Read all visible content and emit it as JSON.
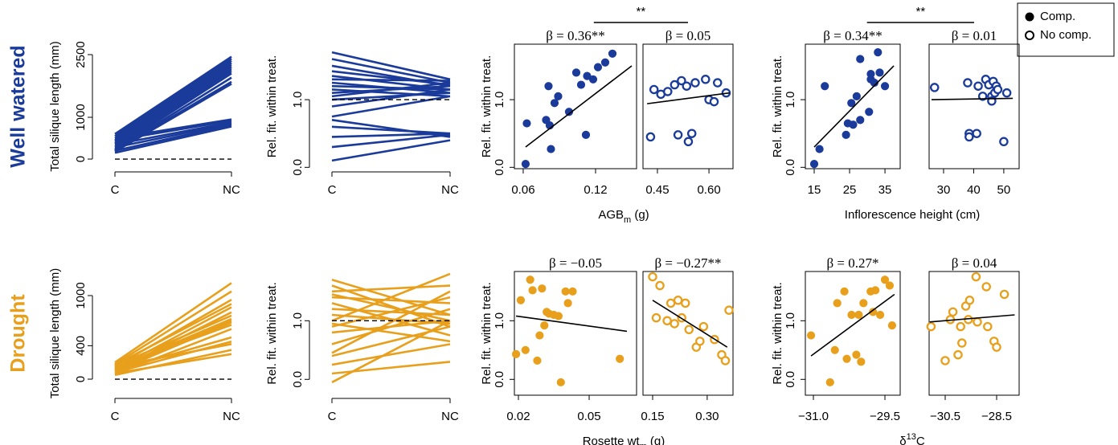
{
  "row_labels": [
    {
      "text": "Well watered",
      "color": "#1b3b9b"
    },
    {
      "text": "Drought",
      "color": "#e8a01c"
    }
  ],
  "legend": {
    "corner": "upper right",
    "entries": [
      {
        "label": "Comp.",
        "marker": "filled"
      },
      {
        "label": "No comp.",
        "marker": "open"
      }
    ]
  },
  "chart_data": [
    {
      "type": "slope",
      "ylabel": "Total silique length (mm)",
      "categories": [
        "C",
        "NC"
      ],
      "ylim": [
        -230,
        2750
      ],
      "yticks": [
        0,
        1000,
        2500
      ],
      "reference_line": 0,
      "color": "#1b3b9b",
      "series": [
        {
          "values": [
            600,
            2450
          ]
        },
        {
          "values": [
            550,
            2400
          ]
        },
        {
          "values": [
            500,
            2350
          ]
        },
        {
          "values": [
            450,
            2300
          ]
        },
        {
          "values": [
            420,
            2250
          ]
        },
        {
          "values": [
            380,
            2200
          ]
        },
        {
          "values": [
            350,
            2150
          ]
        },
        {
          "values": [
            300,
            2100
          ]
        },
        {
          "values": [
            250,
            2050
          ]
        },
        {
          "values": [
            220,
            1950
          ]
        },
        {
          "values": [
            200,
            1850
          ]
        },
        {
          "values": [
            180,
            1800
          ]
        },
        {
          "values": [
            500,
            950
          ]
        },
        {
          "values": [
            450,
            920
          ]
        },
        {
          "values": [
            350,
            880
          ]
        },
        {
          "values": [
            280,
            850
          ]
        },
        {
          "values": [
            200,
            820
          ]
        },
        {
          "values": [
            150,
            780
          ]
        }
      ]
    },
    {
      "type": "slope",
      "ylabel": "Rel. fit. within treat.",
      "categories": [
        "C",
        "NC"
      ],
      "ylim": [
        -0.02,
        1.82
      ],
      "yticks": [
        {
          "value": 0,
          "label": "0.0"
        },
        {
          "value": 1,
          "label": "1.0"
        }
      ],
      "reference_line": 1,
      "color": "#1b3b9b",
      "series": [
        {
          "values": [
            1.7,
            1.3
          ]
        },
        {
          "values": [
            1.6,
            1.25
          ]
        },
        {
          "values": [
            1.5,
            1.2
          ]
        },
        {
          "values": [
            1.42,
            1.22
          ]
        },
        {
          "values": [
            1.35,
            1.15
          ]
        },
        {
          "values": [
            1.3,
            1.28
          ]
        },
        {
          "values": [
            1.25,
            1.1
          ]
        },
        {
          "values": [
            1.2,
            1.15
          ]
        },
        {
          "values": [
            1.15,
            1.05
          ]
        },
        {
          "values": [
            1.1,
            1.2
          ]
        },
        {
          "values": [
            1.05,
            1.25
          ]
        },
        {
          "values": [
            1.0,
            1.1
          ]
        },
        {
          "values": [
            0.9,
            1.15
          ]
        },
        {
          "values": [
            0.75,
            1.05
          ]
        },
        {
          "values": [
            0.7,
            0.45
          ]
        },
        {
          "values": [
            0.6,
            0.5
          ]
        },
        {
          "values": [
            0.45,
            0.5
          ]
        },
        {
          "values": [
            0.3,
            0.48
          ]
        },
        {
          "values": [
            0.1,
            0.4
          ]
        }
      ]
    },
    {
      "type": "scatter",
      "ylabel": "Rel. fit. within treat.",
      "xlabel": {
        "text": "AGB",
        "sub": "m",
        "after": " (g)"
      },
      "bracket_label": "**",
      "ylim": [
        -0.02,
        1.82
      ],
      "yticks": [
        {
          "value": 0,
          "label": "0.0"
        },
        {
          "value": 1,
          "label": "1.0"
        }
      ],
      "color": "#1b3b9b",
      "subplots": [
        {
          "marker": "filled",
          "annotation": "β = 0.36**",
          "xlim": [
            0.0527,
            0.154
          ],
          "xticks": [
            0.06,
            0.12
          ],
          "x": [
            0.062,
            0.063,
            0.079,
            0.081,
            0.082,
            0.083,
            0.086,
            0.089,
            0.098,
            0.104,
            0.108,
            0.112,
            0.113,
            0.118,
            0.122,
            0.128,
            0.134
          ],
          "y": [
            0.05,
            0.65,
            0.7,
            1.2,
            0.62,
            0.27,
            0.95,
            1.05,
            0.82,
            1.4,
            1.22,
            0.48,
            1.35,
            1.3,
            1.48,
            1.55,
            1.68
          ],
          "fit": {
            "x": [
              0.062,
              0.15
            ],
            "y": [
              0.3,
              1.5
            ]
          }
        },
        {
          "marker": "open",
          "annotation": "β = 0.05",
          "xlim": [
            0.408,
            0.67
          ],
          "xticks": [
            0.45,
            {
              "value": 0.6,
              "label": "0.60"
            }
          ],
          "x": [
            0.43,
            0.44,
            0.46,
            0.48,
            0.5,
            0.51,
            0.52,
            0.535,
            0.54,
            0.55,
            0.56,
            0.59,
            0.6,
            0.615,
            0.625,
            0.65
          ],
          "y": [
            0.45,
            1.15,
            1.08,
            1.12,
            1.22,
            0.48,
            1.28,
            1.2,
            0.38,
            0.5,
            1.25,
            1.3,
            1.0,
            0.97,
            1.25,
            1.1
          ],
          "fit": {
            "x": [
              0.42,
              0.66
            ],
            "y": [
              0.94,
              1.1
            ]
          }
        }
      ]
    },
    {
      "type": "scatter",
      "ylabel": "Rel. fit. within treat.",
      "xlabel": {
        "text": "Inflorescence height (cm)"
      },
      "bracket_label": "**",
      "ylim": [
        -0.02,
        1.82
      ],
      "yticks": [
        {
          "value": 0,
          "label": "0.0"
        },
        {
          "value": 1,
          "label": "1.0"
        }
      ],
      "color": "#1b3b9b",
      "subplots": [
        {
          "marker": "filled",
          "annotation": "β = 0.34**",
          "xlim": [
            12.5,
            39.3
          ],
          "xticks": [
            15,
            25,
            35
          ],
          "x": [
            15,
            16.5,
            18,
            24,
            24.5,
            25.5,
            26,
            27,
            28,
            28,
            30.5,
            31,
            31,
            32,
            33,
            33.5,
            35
          ],
          "y": [
            0.05,
            0.27,
            1.2,
            0.48,
            0.65,
            0.95,
            0.63,
            1.05,
            0.7,
            1.6,
            0.82,
            1.3,
            1.38,
            1.25,
            1.7,
            1.4,
            1.2
          ],
          "fit": {
            "x": [
              15,
              37.5
            ],
            "y": [
              0.3,
              1.5
            ]
          }
        },
        {
          "marker": "open",
          "annotation": "β = 0.01",
          "xlim": [
            25.2,
            55.1
          ],
          "xticks": [
            30,
            40,
            50
          ],
          "x": [
            27,
            38,
            38.5,
            38.5,
            41,
            41.5,
            43,
            44,
            45,
            46,
            46,
            46.5,
            47,
            47.5,
            48,
            50,
            51
          ],
          "y": [
            1.18,
            1.25,
            0.5,
            0.45,
            0.5,
            1.2,
            1.05,
            1.3,
            1.22,
            1.05,
            0.98,
            1.27,
            1.1,
            1.2,
            1.15,
            0.38,
            1.1
          ],
          "fit": {
            "x": [
              26,
              53
            ],
            "y": [
              1.0,
              1.02
            ]
          }
        }
      ]
    },
    {
      "type": "slope",
      "ylabel": "Total silique length (mm)",
      "categories": [
        "C",
        "NC"
      ],
      "ylim": [
        -192,
        1288
      ],
      "yticks": [
        0,
        400,
        1000
      ],
      "reference_line": 0,
      "color": "#e8a01c",
      "series": [
        {
          "values": [
            200,
            1150
          ]
        },
        {
          "values": [
            180,
            1050
          ]
        },
        {
          "values": [
            150,
            950
          ]
        },
        {
          "values": [
            170,
            900
          ]
        },
        {
          "values": [
            120,
            860
          ]
        },
        {
          "values": [
            100,
            800
          ]
        },
        {
          "values": [
            160,
            760
          ]
        },
        {
          "values": [
            130,
            720
          ]
        },
        {
          "values": [
            110,
            700
          ]
        },
        {
          "values": [
            90,
            680
          ]
        },
        {
          "values": [
            140,
            650
          ]
        },
        {
          "values": [
            60,
            600
          ]
        },
        {
          "values": [
            100,
            500
          ]
        },
        {
          "values": [
            80,
            450
          ]
        },
        {
          "values": [
            150,
            420
          ]
        },
        {
          "values": [
            50,
            350
          ]
        },
        {
          "values": [
            70,
            300
          ]
        }
      ]
    },
    {
      "type": "slope",
      "ylabel": "Rel. fit. within treat.",
      "categories": [
        "C",
        "NC"
      ],
      "ylim": [
        -0.27,
        1.84
      ],
      "yticks": [
        {
          "value": 0,
          "label": "0.0"
        },
        {
          "value": 1,
          "label": "1.0"
        }
      ],
      "reference_line": 1,
      "color": "#e8a01c",
      "series": [
        {
          "values": [
            1.7,
            1.1
          ]
        },
        {
          "values": [
            1.6,
            0.9
          ]
        },
        {
          "values": [
            1.5,
            1.6
          ]
        },
        {
          "values": [
            1.45,
            1.0
          ]
        },
        {
          "values": [
            1.4,
            1.3
          ]
        },
        {
          "values": [
            1.3,
            0.75
          ]
        },
        {
          "values": [
            1.2,
            1.1
          ]
        },
        {
          "values": [
            1.1,
            0.95
          ]
        },
        {
          "values": [
            1.0,
            1.8
          ]
        },
        {
          "values": [
            0.95,
            0.65
          ]
        },
        {
          "values": [
            0.9,
            1.4
          ]
        },
        {
          "values": [
            0.8,
            1.0
          ]
        },
        {
          "values": [
            0.6,
            1.2
          ]
        },
        {
          "values": [
            0.45,
            1.5
          ]
        },
        {
          "values": [
            0.4,
            0.9
          ]
        },
        {
          "values": [
            0.25,
            0.6
          ]
        },
        {
          "values": [
            0.1,
            0.3
          ]
        },
        {
          "values": [
            -0.05,
            1.0
          ]
        }
      ]
    },
    {
      "type": "scatter",
      "ylabel": "Rel. fit. within treat.",
      "xlabel": {
        "text": "Rosette wt",
        "sub": "m",
        "after": " (g)"
      },
      "ylim": [
        -0.27,
        1.84
      ],
      "yticks": [
        {
          "value": 0,
          "label": "0.0"
        },
        {
          "value": 1,
          "label": "1.0"
        }
      ],
      "color": "#e8a01c",
      "subplots": [
        {
          "marker": "filled",
          "annotation": "β = −0.05",
          "xlim": [
            0.0183,
            0.0701
          ],
          "xticks": [
            0.02,
            0.05
          ],
          "x": [
            0.019,
            0.021,
            0.023,
            0.025,
            0.026,
            0.028,
            0.029,
            0.03,
            0.031,
            0.032,
            0.033,
            0.035,
            0.037,
            0.038,
            0.04,
            0.041,
            0.043,
            0.063
          ],
          "y": [
            0.43,
            1.35,
            0.5,
            1.7,
            1.52,
            0.32,
            0.75,
            1.55,
            0.92,
            1.15,
            1.12,
            1.1,
            1.08,
            -0.05,
            1.5,
            1.3,
            1.5,
            0.35
          ],
          "fit": {
            "x": [
              0.019,
              0.066
            ],
            "y": [
              1.08,
              0.82
            ]
          }
        },
        {
          "marker": "open",
          "annotation": "β = −0.27**",
          "xlim": [
            0.1235,
            0.371
          ],
          "xticks": [
            0.15,
            {
              "value": 0.3,
              "label": "0.30"
            }
          ],
          "x": [
            0.15,
            0.16,
            0.17,
            0.19,
            0.2,
            0.21,
            0.22,
            0.23,
            0.24,
            0.25,
            0.27,
            0.28,
            0.29,
            0.32,
            0.34,
            0.35,
            0.36
          ],
          "y": [
            1.75,
            1.05,
            1.6,
            1.0,
            1.3,
            0.95,
            1.35,
            1.05,
            1.3,
            0.85,
            0.55,
            0.65,
            0.9,
            0.68,
            0.42,
            0.32,
            1.18
          ],
          "fit": {
            "x": [
              0.15,
              0.355
            ],
            "y": [
              1.35,
              0.55
            ]
          }
        }
      ]
    },
    {
      "type": "scatter",
      "ylabel": "Rel. fit. within treat.",
      "xlabel": {
        "text": "δ",
        "sup": "13",
        "after": "C"
      },
      "ylim": [
        -0.27,
        1.84
      ],
      "yticks": [
        {
          "value": 0,
          "label": "0.0"
        },
        {
          "value": 1,
          "label": "1.0"
        }
      ],
      "color": "#e8a01c",
      "subplots": [
        {
          "marker": "filled",
          "annotation": "β = 0.27*",
          "xlim": [
            -31.169,
            -29.18
          ],
          "xticks": [
            {
              "value": -31,
              "label": "−31.0"
            },
            {
              "value": -29.5,
              "label": "−29.5"
            }
          ],
          "x": [
            -31.05,
            -30.65,
            -30.55,
            -30.5,
            -30.35,
            -30.3,
            -30.2,
            -30.1,
            -30.05,
            -30.0,
            -29.95,
            -29.8,
            -29.75,
            -29.7,
            -29.6,
            -29.5,
            -29.4,
            -29.35
          ],
          "y": [
            0.75,
            -0.05,
            0.5,
            1.3,
            1.5,
            0.35,
            1.1,
            0.42,
            1.1,
            0.3,
            1.3,
            1.5,
            1.15,
            1.52,
            1.1,
            1.7,
            1.6,
            0.92
          ],
          "fit": {
            "x": [
              -31.05,
              -29.3
            ],
            "y": [
              0.4,
              1.45
            ]
          }
        },
        {
          "marker": "open",
          "annotation": "β = 0.04",
          "xlim": [
            -31.125,
            -27.625
          ],
          "xticks": [
            {
              "value": -30.5,
              "label": "−30.5"
            },
            {
              "value": -28.5,
              "label": "−28.5"
            }
          ],
          "x": [
            -31.05,
            -30.5,
            -30.3,
            -30.2,
            -30.0,
            -29.9,
            -29.85,
            -29.7,
            -29.6,
            -29.55,
            -29.3,
            -29.25,
            -28.9,
            -28.85,
            -28.6,
            -28.5,
            -28.2
          ],
          "y": [
            0.9,
            0.32,
            1.02,
            1.15,
            0.42,
            0.9,
            0.62,
            1.25,
            1.02,
            1.35,
            1.75,
            0.98,
            1.58,
            0.9,
            0.65,
            0.55,
            1.45
          ],
          "fit": {
            "x": [
              -31.1,
              -27.8
            ],
            "y": [
              0.98,
              1.1
            ]
          }
        }
      ]
    }
  ]
}
